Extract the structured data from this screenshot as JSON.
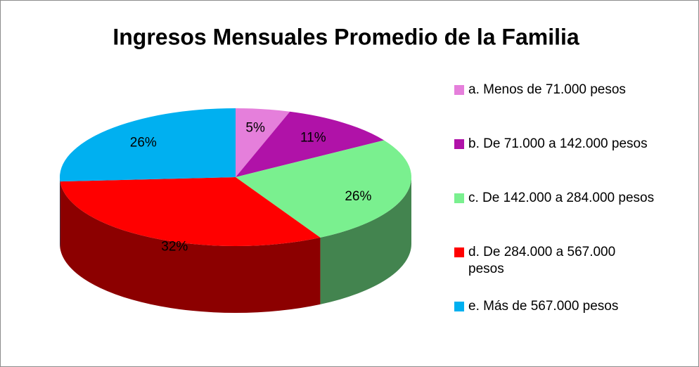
{
  "chart_data": {
    "type": "pie",
    "title": "Ingresos Mensuales Promedio de la Familia",
    "categories": [
      "a. Menos de 71.000 pesos",
      "b. De 71.000 a 142.000 pesos",
      "c. De 142.000 a 284.000 pesos",
      "d. De 284.000 a 567.000 pesos",
      "e. Más de 567.000 pesos"
    ],
    "values": [
      5,
      11,
      26,
      32,
      26
    ],
    "value_labels": [
      "5%",
      "11%",
      "26%",
      "32%",
      "26%"
    ],
    "colors": [
      "#e57fdb",
      "#b012a8",
      "#7af08f",
      "#ff0000",
      "#00b0f0"
    ],
    "legend": "right",
    "three_d": true
  }
}
